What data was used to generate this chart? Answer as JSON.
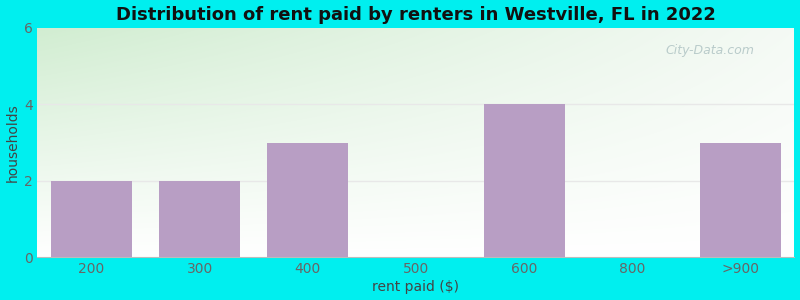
{
  "categories": [
    "200",
    "300",
    "400",
    "500",
    "600",
    "800",
    ">900"
  ],
  "values": [
    2,
    2,
    3,
    0,
    4,
    0,
    3
  ],
  "bar_color": "#b89ec4",
  "title": "Distribution of rent paid by renters in Westville, FL in 2022",
  "xlabel": "rent paid ($)",
  "ylabel": "households",
  "ylim": [
    0,
    6
  ],
  "yticks": [
    0,
    2,
    4,
    6
  ],
  "background_color": "#00EFEF",
  "plot_bg_color_topleft": "#d4edd4",
  "plot_bg_color_right": "#f5f5f5",
  "watermark": "City-Data.com",
  "title_fontsize": 13,
  "axis_fontsize": 10,
  "tick_fontsize": 10,
  "grid_color": "#e8e8e8",
  "tick_color": "#666666",
  "title_color": "#111111",
  "label_color": "#444444"
}
